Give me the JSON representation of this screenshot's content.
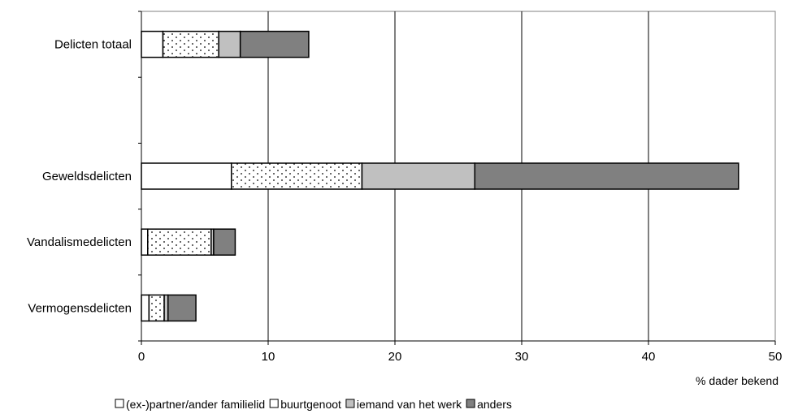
{
  "chart_data": {
    "type": "bar",
    "orientation": "horizontal",
    "stacked": true,
    "categories": [
      "Delicten totaal",
      "Geweldsdelicten",
      "Vandalismedelicten",
      "Vermogensdelicten"
    ],
    "series": [
      {
        "name": "(ex-)partner/ander familielid",
        "values": [
          1.7,
          7.1,
          0.5,
          0.6
        ],
        "color": "#ffffff",
        "pattern": "none"
      },
      {
        "name": "buurtgenoot",
        "values": [
          4.4,
          10.3,
          5.0,
          1.2
        ],
        "color": "#ffffff",
        "pattern": "dots"
      },
      {
        "name": "iemand van het werk",
        "values": [
          1.7,
          8.9,
          0.2,
          0.3
        ],
        "color": "#c0c0c0",
        "pattern": "none"
      },
      {
        "name": "anders",
        "values": [
          5.4,
          20.8,
          1.7,
          2.2
        ],
        "color": "#808080",
        "pattern": "none"
      }
    ],
    "xlim": [
      0,
      50
    ],
    "x_ticks": [
      "0",
      "10",
      "20",
      "30",
      "40",
      "50"
    ],
    "xlabel": "% dader bekend",
    "ylabel": "",
    "title": "",
    "grid": "vertical",
    "legend_position": "bottom"
  }
}
